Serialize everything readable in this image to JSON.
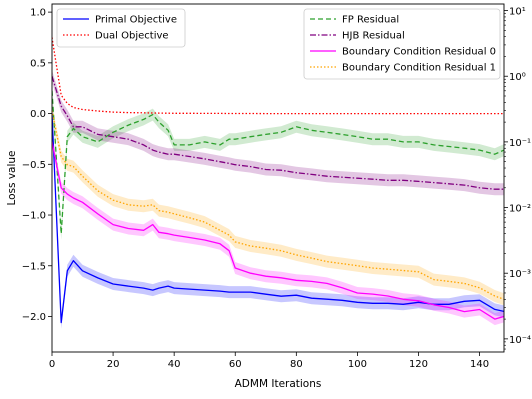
{
  "chart_data": {
    "type": "line",
    "xlabel": "ADMM Iterations",
    "ylabel": "Loss value",
    "xlim": [
      0,
      148
    ],
    "ylim": [
      -2.35,
      1.08
    ],
    "y2_scale": "log",
    "y2lim_exponents": [
      -4.2,
      1.1
    ],
    "xticks": [
      "0",
      "20",
      "40",
      "60",
      "80",
      "100",
      "120",
      "140"
    ],
    "yticks": [
      "1.0",
      "0.5",
      "0.0",
      "−0.5",
      "−1.0",
      "−1.5",
      "−2.0"
    ],
    "y2ticks": [
      "10¹",
      "10⁰",
      "10⁻¹",
      "10⁻²",
      "10⁻³",
      "10⁻⁴"
    ],
    "x": [
      0,
      3,
      5,
      7,
      10,
      15,
      20,
      25,
      30,
      33,
      35,
      38,
      40,
      45,
      50,
      55,
      58,
      60,
      65,
      70,
      75,
      80,
      85,
      90,
      95,
      100,
      105,
      110,
      115,
      120,
      125,
      130,
      135,
      140,
      145,
      148
    ],
    "left_series": [
      {
        "name": "Primal Objective",
        "color": "#0000ff",
        "dash": "solid",
        "band": true,
        "values": [
          0.0,
          -2.06,
          -1.55,
          -1.45,
          -1.55,
          -1.62,
          -1.68,
          -1.7,
          -1.72,
          -1.74,
          -1.72,
          -1.7,
          -1.72,
          -1.73,
          -1.74,
          -1.75,
          -1.76,
          -1.76,
          -1.76,
          -1.78,
          -1.8,
          -1.79,
          -1.82,
          -1.83,
          -1.84,
          -1.86,
          -1.87,
          -1.87,
          -1.88,
          -1.86,
          -1.88,
          -1.88,
          -1.85,
          -1.84,
          -1.93,
          -1.95
        ]
      },
      {
        "name": "Dual Objective",
        "color": "#ff0000",
        "dash": "dotted",
        "band": false,
        "values": [
          0.75,
          0.18,
          0.1,
          0.06,
          0.04,
          0.025,
          0.015,
          0.01,
          0.008,
          0.006,
          0.005,
          0.004,
          0.003,
          0.003,
          0.002,
          0.002,
          0.001,
          0.001,
          0.001,
          0.0,
          0.0,
          0.0,
          0.0,
          0.0,
          0.0,
          0.0,
          0.0,
          0.0,
          0.0,
          0.0,
          0.0,
          0.0,
          0.0,
          0.0,
          0.0,
          0.0
        ]
      }
    ],
    "right_series": [
      {
        "name": "FP Residual",
        "color": "#2ca02c",
        "dash": "dashed",
        "band": true,
        "values": [
          0.6,
          0.004,
          0.12,
          0.16,
          0.12,
          0.1,
          0.14,
          0.18,
          0.22,
          0.26,
          0.2,
          0.15,
          0.09,
          0.09,
          0.1,
          0.09,
          0.11,
          0.11,
          0.12,
          0.13,
          0.14,
          0.17,
          0.15,
          0.14,
          0.13,
          0.12,
          0.11,
          0.11,
          0.1,
          0.1,
          0.09,
          0.085,
          0.08,
          0.075,
          0.065,
          0.075
        ]
      },
      {
        "name": "HJB Residual",
        "color": "#800080",
        "dash": "dashdot",
        "band": true,
        "values": [
          1.0,
          0.35,
          0.25,
          0.17,
          0.17,
          0.13,
          0.12,
          0.11,
          0.09,
          0.075,
          0.07,
          0.065,
          0.065,
          0.06,
          0.055,
          0.05,
          0.047,
          0.045,
          0.042,
          0.038,
          0.037,
          0.034,
          0.032,
          0.03,
          0.029,
          0.028,
          0.027,
          0.026,
          0.026,
          0.025,
          0.024,
          0.023,
          0.022,
          0.02,
          0.019,
          0.019
        ]
      },
      {
        "name": "Boundary Condition Residual 0",
        "color": "#ff00ff",
        "dash": "solid",
        "band": true,
        "values": [
          0.1,
          0.02,
          0.016,
          0.014,
          0.012,
          0.008,
          0.0055,
          0.0048,
          0.0045,
          0.0055,
          0.0042,
          0.004,
          0.0038,
          0.0035,
          0.0032,
          0.0028,
          0.0022,
          0.0012,
          0.001,
          0.0009,
          0.00085,
          0.00078,
          0.00075,
          0.0007,
          0.0006,
          0.0005,
          0.00048,
          0.00045,
          0.0004,
          0.00038,
          0.00033,
          0.0003,
          0.00026,
          0.00028,
          0.0002,
          0.00022
        ]
      },
      {
        "name": "Boundary Condition Residual 1",
        "color": "#ffa500",
        "dash": "dotted",
        "band": true,
        "values": [
          0.3,
          0.06,
          0.045,
          0.042,
          0.03,
          0.018,
          0.013,
          0.011,
          0.0105,
          0.011,
          0.009,
          0.0085,
          0.008,
          0.007,
          0.006,
          0.0045,
          0.0038,
          0.003,
          0.0026,
          0.0024,
          0.0022,
          0.0019,
          0.0017,
          0.0015,
          0.0014,
          0.0013,
          0.0012,
          0.00115,
          0.0011,
          0.00105,
          0.0008,
          0.00075,
          0.0007,
          0.0006,
          0.00045,
          0.0004
        ]
      }
    ],
    "left_legend_placement": "upper-left",
    "right_legend_placement": "upper-right",
    "grid": false
  }
}
